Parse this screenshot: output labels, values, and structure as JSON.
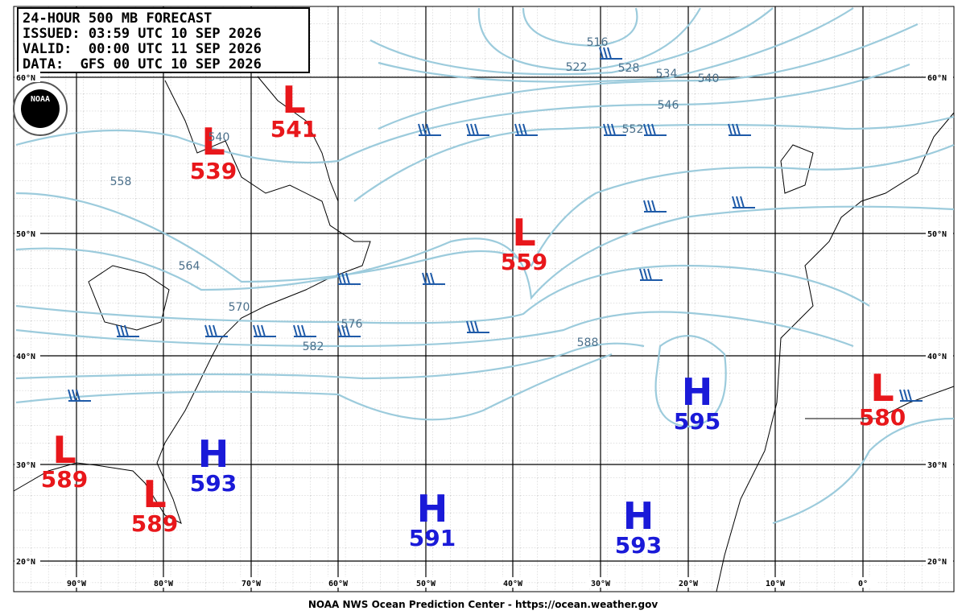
{
  "header": {
    "lines": [
      "24-HOUR 500 MB FORECAST",
      "ISSUED: 03:59 UTC 10 SEP 2026",
      "VALID:  00:00 UTC 11 SEP 2026",
      "DATA:  GFS 00 UTC 10 SEP 2026"
    ]
  },
  "logo": "NOAA",
  "centers": [
    {
      "type": "L",
      "value": "541"
    },
    {
      "type": "L",
      "value": "539"
    },
    {
      "type": "L",
      "value": "559"
    },
    {
      "type": "L",
      "value": "580"
    },
    {
      "type": "L",
      "value": "589"
    },
    {
      "type": "L",
      "value": "589"
    },
    {
      "type": "H",
      "value": "593"
    },
    {
      "type": "H",
      "value": "591"
    },
    {
      "type": "H",
      "value": "593"
    },
    {
      "type": "H",
      "value": "595"
    }
  ],
  "contour_labels": [
    "516",
    "522",
    "528",
    "534",
    "540",
    "546",
    "552",
    "540",
    "558",
    "564",
    "570",
    "576",
    "582",
    "588"
  ],
  "lat_labels": [
    "60°N",
    "50°N",
    "40°N",
    "30°N",
    "20°N"
  ],
  "lon_labels": [
    "90°W",
    "80°W",
    "70°W",
    "60°W",
    "50°W",
    "40°W",
    "30°W",
    "20°W",
    "10°W",
    "0°"
  ],
  "footer": "NOAA NWS Ocean Prediction Center - https://ocean.weather.gov"
}
